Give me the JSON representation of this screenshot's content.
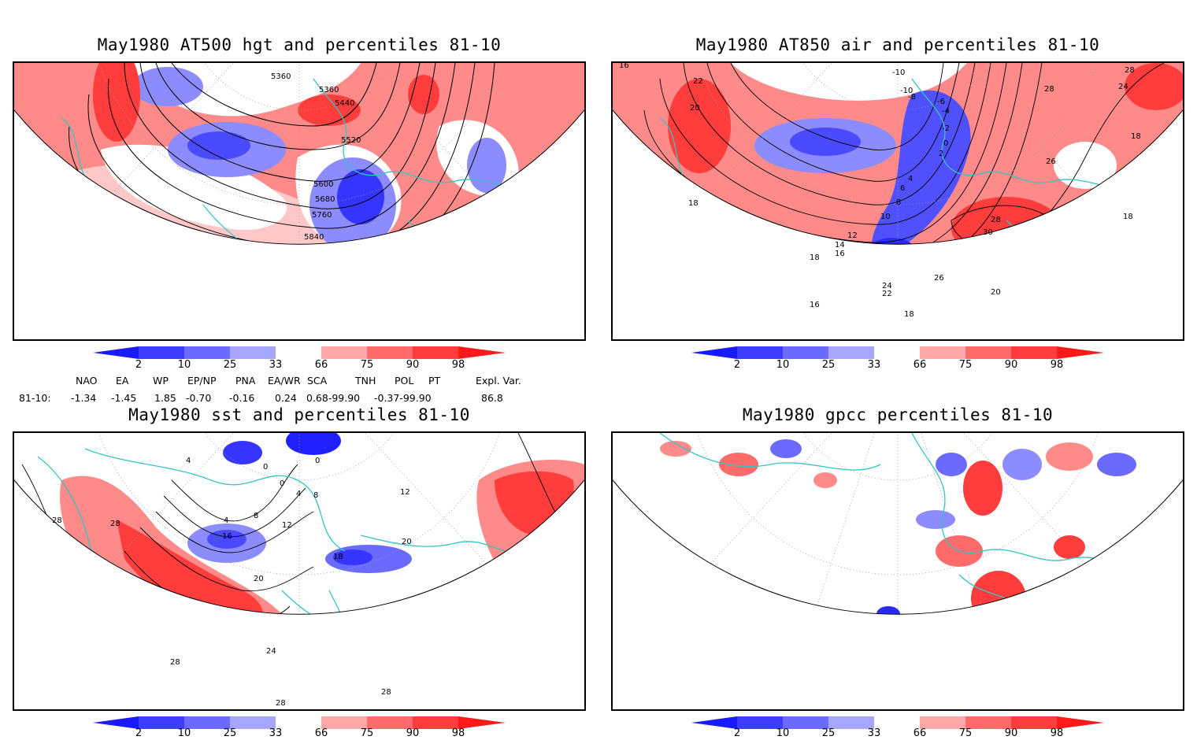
{
  "panels": [
    {
      "title": "May1980 AT500 hgt and percentiles 81-10",
      "contour_labels": [
        "5360",
        "5360",
        "5440",
        "5520",
        "5600",
        "5680",
        "5760",
        "5840"
      ]
    },
    {
      "title": "May1980 AT850 air and percentiles 81-10",
      "contour_labels": [
        "16",
        "22",
        "20",
        "-10",
        "-10",
        "-8",
        "-6",
        "-4",
        "-2",
        "0",
        "2",
        "4",
        "6",
        "8",
        "10",
        "12",
        "14",
        "16",
        "18",
        "18",
        "24",
        "26",
        "28",
        "30",
        "28",
        "28",
        "24",
        "26",
        "18",
        "18",
        "20",
        "22",
        "16",
        "18"
      ]
    },
    {
      "title": "May1980 sst and percentiles 81-10",
      "contour_labels": [
        "28",
        "28",
        "4",
        "0",
        "0",
        "0",
        "4",
        "8",
        "4",
        "8",
        "12",
        "16",
        "12",
        "18",
        "20",
        "20",
        "24",
        "28",
        "28",
        "28"
      ]
    },
    {
      "title": "May1980 gpcc percentiles 81-10",
      "contour_labels": []
    }
  ],
  "colorbar": {
    "labels": [
      "2",
      "10",
      "25",
      "33",
      "66",
      "75",
      "90",
      "98"
    ],
    "colors": [
      "#1a1aff",
      "#3d3dff",
      "#6a6aff",
      "#a6a6ff",
      "#ffffff",
      "#ffa6a6",
      "#ff6a6a",
      "#ff3d3d",
      "#ff1a1a"
    ]
  },
  "indices": {
    "headers": [
      "NAO",
      "EA",
      "WP",
      "EP/NP",
      "PNA",
      "EA/WR",
      "SCA",
      "TNH",
      "POL",
      "PT",
      "Expl. Var."
    ],
    "row_label": "81-10:",
    "values": [
      "-1.34",
      "-1.45",
      "1.85",
      "-0.70",
      "-0.16",
      "0.24",
      "0.68-99.90",
      "-0.37-99.90",
      "86.8"
    ]
  },
  "map_colors": {
    "coast": "#35c4c4",
    "grid": "#9a9a9a"
  }
}
